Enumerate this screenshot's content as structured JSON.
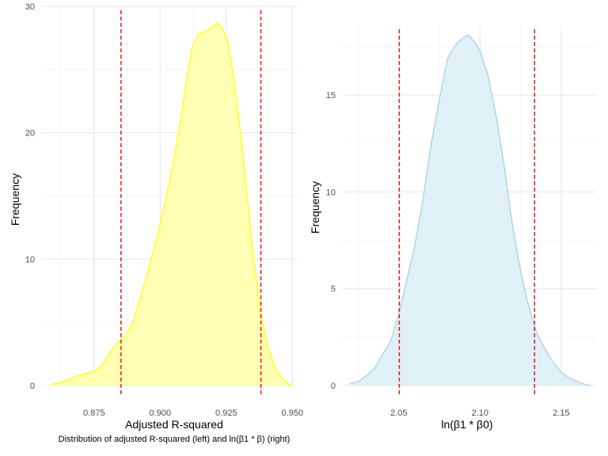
{
  "caption": "Distribution of adjusted R-squared (left) and ln(β1 * β) (right)",
  "chart_data": [
    {
      "type": "area",
      "title": "",
      "xlabel": "Adjusted R-squared",
      "ylabel": "Frequency",
      "xlim": [
        0.855,
        0.952
      ],
      "ylim": [
        0,
        30
      ],
      "x_ticks": [
        0.875,
        0.9,
        0.925,
        0.95
      ],
      "x_tick_labels": [
        "0.875",
        "0.900",
        "0.925",
        "0.950"
      ],
      "y_ticks": [
        0,
        10,
        20,
        30
      ],
      "y_tick_labels": [
        "0",
        "10",
        "20",
        "30"
      ],
      "grid": true,
      "fill_color": "#ffffb3",
      "line_color": "#ffff00",
      "vline_color": "#e31a1c",
      "vlines": [
        0.8852,
        0.9381
      ],
      "series": [
        {
          "x": [
            0.8585,
            0.862,
            0.866,
            0.869,
            0.8715,
            0.8745,
            0.877,
            0.8795,
            0.882,
            0.8845,
            0.887,
            0.8895,
            0.892,
            0.8945,
            0.897,
            0.8995,
            0.902,
            0.9045,
            0.907,
            0.9095,
            0.912,
            0.9145,
            0.917,
            0.9195,
            0.9215,
            0.9235,
            0.9255,
            0.928,
            0.9305,
            0.933,
            0.9355,
            0.938,
            0.9405,
            0.943,
            0.9455,
            0.948,
            0.95
          ],
          "y": [
            0.1,
            0.2,
            0.5,
            0.8,
            0.9,
            1.1,
            1.4,
            2.1,
            2.9,
            3.5,
            4.0,
            4.9,
            6.6,
            8.4,
            10.3,
            12.3,
            14.6,
            17.1,
            20.1,
            23.4,
            26.7,
            27.8,
            28.0,
            28.3,
            28.7,
            28.3,
            27.2,
            24.2,
            19.8,
            14.8,
            9.8,
            5.8,
            3.3,
            1.7,
            0.7,
            0.2,
            0.0
          ]
        }
      ]
    },
    {
      "type": "area",
      "title": "",
      "xlabel": "ln(β1 * β0)",
      "ylabel": "Frequency",
      "xlim": [
        2.015,
        2.172
      ],
      "ylim": [
        0,
        18.6
      ],
      "x_ticks": [
        2.05,
        2.1,
        2.15
      ],
      "x_tick_labels": [
        "2.05",
        "2.10",
        "2.15"
      ],
      "y_ticks": [
        0,
        5,
        10,
        15
      ],
      "y_tick_labels": [
        "0",
        "5",
        "10",
        "15"
      ],
      "grid": true,
      "fill_color": "#dff0f6",
      "line_color": "#a6d4e4",
      "vline_color": "#e31a1c",
      "vlines": [
        2.0503,
        2.1336
      ],
      "series": [
        {
          "x": [
            2.02,
            2.025,
            2.03,
            2.035,
            2.04,
            2.045,
            2.05,
            2.055,
            2.06,
            2.065,
            2.07,
            2.075,
            2.08,
            2.085,
            2.09,
            2.093,
            2.097,
            2.1,
            2.105,
            2.11,
            2.115,
            2.12,
            2.125,
            2.13,
            2.135,
            2.14,
            2.145,
            2.15,
            2.155,
            2.16,
            2.165,
            2.168
          ],
          "y": [
            0.1,
            0.2,
            0.5,
            0.9,
            1.6,
            2.3,
            3.7,
            5.5,
            7.3,
            9.7,
            12.5,
            14.8,
            16.9,
            17.6,
            18.0,
            18.1,
            17.7,
            17.3,
            16.0,
            13.9,
            11.3,
            8.3,
            5.9,
            4.1,
            2.7,
            1.9,
            1.2,
            0.7,
            0.4,
            0.2,
            0.05,
            0.0
          ]
        }
      ]
    }
  ]
}
